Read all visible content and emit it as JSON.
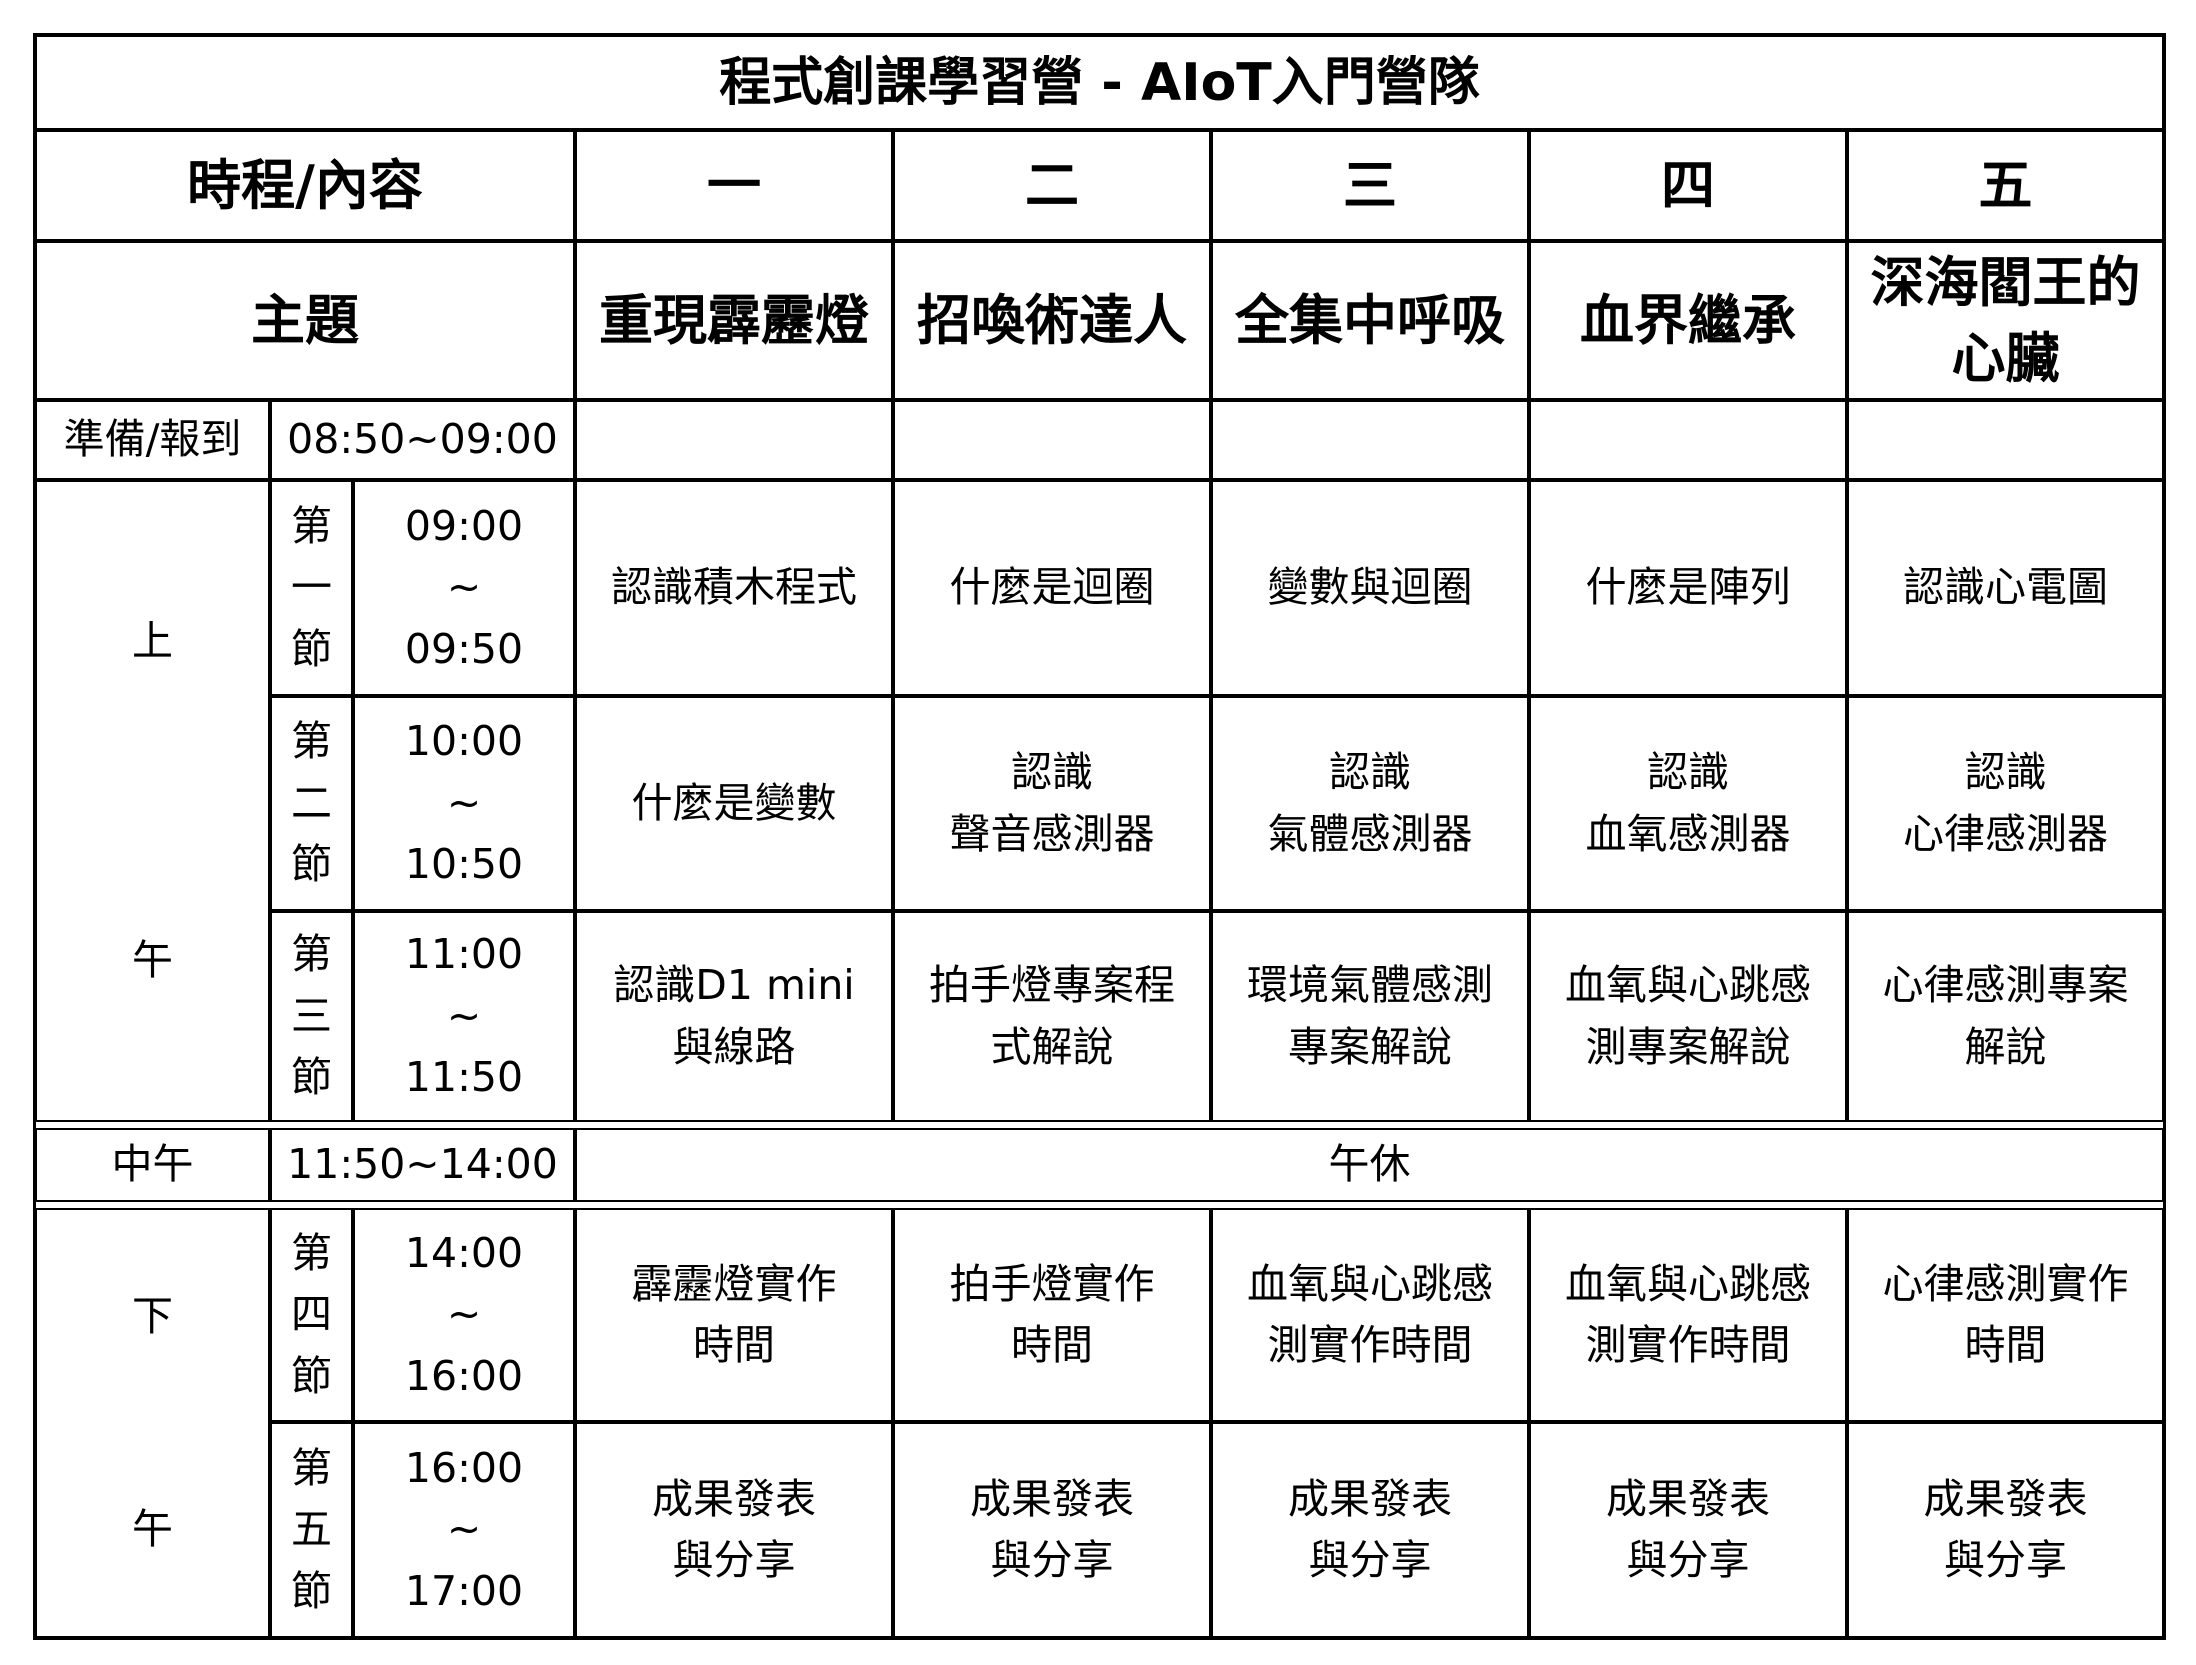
{
  "title": "程式創課學習營 - AIoT入門營隊",
  "header": {
    "label": "時程/內容",
    "days": [
      "一",
      "二",
      "三",
      "四",
      "五"
    ]
  },
  "theme": {
    "label": "主題",
    "items": [
      "重現霹靂燈",
      "招喚術達人",
      "全集中呼吸",
      "血界繼承",
      "深海閻王的\n心臟"
    ]
  },
  "checkin": {
    "label": "準備/報到",
    "time": "08:50~09:00"
  },
  "morning": {
    "label_top": "上",
    "label_bottom": "午",
    "periods": [
      {
        "name": "第\n一\n節",
        "start": "09:00",
        "sep": "~",
        "end": "09:50",
        "items": [
          "認識積木程式",
          "什麼是迴圈",
          "變數與迴圈",
          "什麼是陣列",
          "認識心電圖"
        ]
      },
      {
        "name": "第\n二\n節",
        "start": "10:00",
        "sep": "~",
        "end": "10:50",
        "items": [
          "什麼是變數",
          "認識\n聲音感測器",
          "認識\n氣體感測器",
          "認識\n血氧感測器",
          "認識\n心律感測器"
        ]
      },
      {
        "name": "第\n三\n節",
        "start": "11:00",
        "sep": "~",
        "end": "11:50",
        "items": [
          "認識D1 mini\n與線路",
          "拍手燈專案程\n式解說",
          "環境氣體感測\n專案解說",
          "血氧與心跳感\n測專案解說",
          "心律感測專案\n解說"
        ]
      }
    ]
  },
  "lunch": {
    "label": "中午",
    "time": "11:50~14:00",
    "activity": "午休"
  },
  "afternoon": {
    "label_top": "下",
    "label_bottom": "午",
    "periods": [
      {
        "name": "第\n四\n節",
        "start": "14:00",
        "sep": "~",
        "end": "16:00",
        "items": [
          "霹靂燈實作\n時間",
          "拍手燈實作\n時間",
          "血氧與心跳感\n測實作時間",
          "血氧與心跳感\n測實作時間",
          "心律感測實作\n時間"
        ]
      },
      {
        "name": "第\n五\n節",
        "start": "16:00",
        "sep": "~",
        "end": "17:00",
        "items": [
          "成果發表\n與分享",
          "成果發表\n與分享",
          "成果發表\n與分享",
          "成果發表\n與分享",
          "成果發表\n與分享"
        ]
      }
    ]
  }
}
